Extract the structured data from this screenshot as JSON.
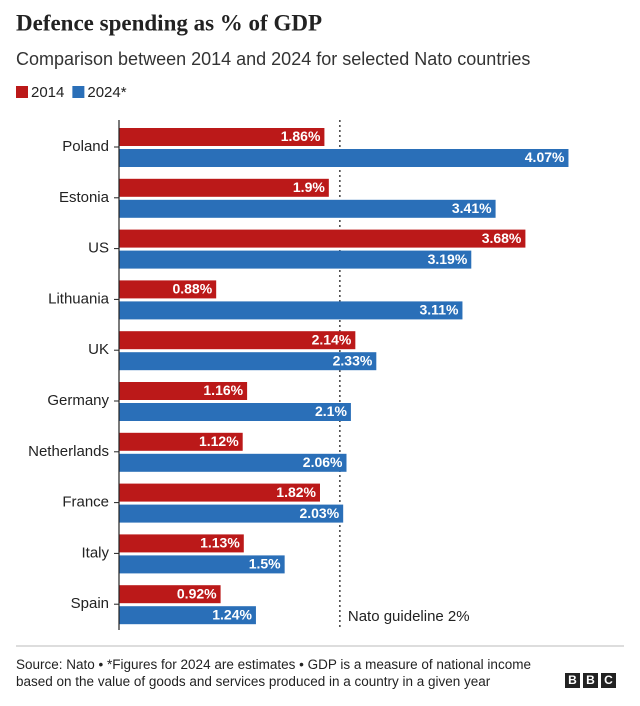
{
  "chart_data": {
    "type": "hbar",
    "title": "Defence spending as % of GDP",
    "subtitle": "Comparison between 2014 and 2024 for selected Nato countries",
    "categories": [
      "Poland",
      "Estonia",
      "US",
      "Lithuania",
      "UK",
      "Germany",
      "Netherlands",
      "France",
      "Italy",
      "Spain"
    ],
    "series": [
      {
        "name": "2014",
        "color": "#bb1919",
        "values": [
          1.86,
          1.9,
          3.68,
          0.88,
          2.14,
          1.16,
          1.12,
          1.82,
          1.13,
          0.92
        ],
        "value_labels": [
          "1.86%",
          "1.9%",
          "3.68%",
          "0.88%",
          "2.14%",
          "1.16%",
          "1.12%",
          "1.82%",
          "1.13%",
          "0.92%"
        ]
      },
      {
        "name": "2024*",
        "color": "#2a6fb8",
        "values": [
          4.07,
          3.41,
          3.19,
          3.11,
          2.33,
          2.1,
          2.06,
          2.03,
          1.5,
          1.24
        ],
        "value_labels": [
          "4.07%",
          "3.41%",
          "3.19%",
          "3.11%",
          "2.33%",
          "2.1%",
          "2.06%",
          "2.03%",
          "1.5%",
          "1.24%"
        ]
      }
    ],
    "xlim": [
      0,
      4.6
    ],
    "reference_line": {
      "value": 2,
      "label": "Nato guideline 2%"
    },
    "source": "Source: Nato • *Figures for 2024 are estimates • GDP is a measure of national income based on the value of goods and services produced in a country in a given year",
    "logo": [
      "B",
      "B",
      "C"
    ]
  }
}
